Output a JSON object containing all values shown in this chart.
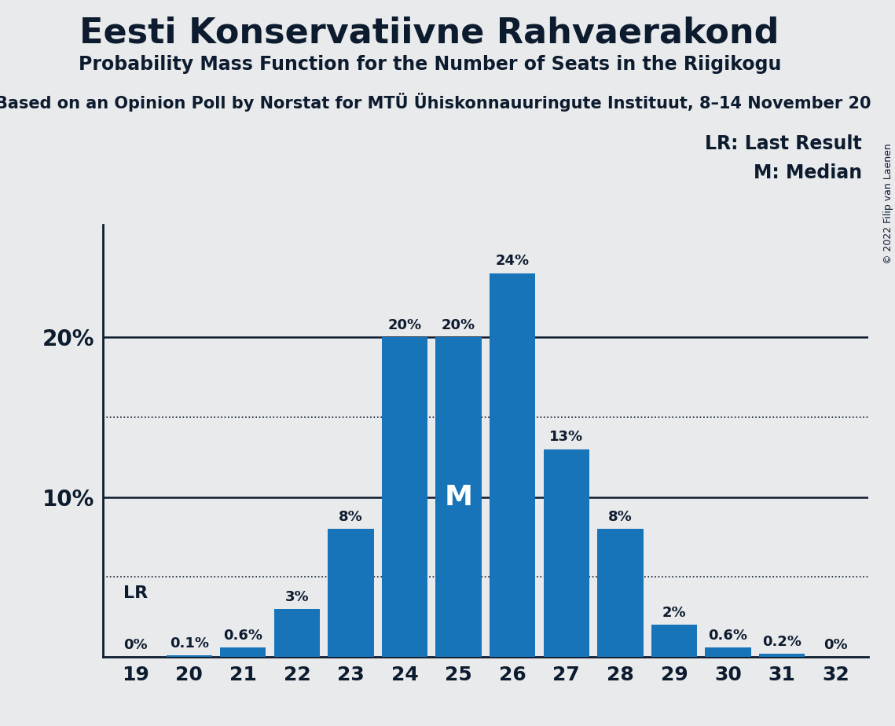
{
  "title": "Eesti Konservatiivne Rahvaerakond",
  "subtitle": "Probability Mass Function for the Number of Seats in the Riigikogu",
  "source_line": "Based on an Opinion Poll by Norstat for MTÜ Ühiskonnauuringute Instituut, 8–14 November 20",
  "copyright": "© 2022 Filip van Laenen",
  "seats": [
    19,
    20,
    21,
    22,
    23,
    24,
    25,
    26,
    27,
    28,
    29,
    30,
    31,
    32
  ],
  "probabilities": [
    0.0,
    0.1,
    0.6,
    3.0,
    8.0,
    20.0,
    20.0,
    24.0,
    13.0,
    8.0,
    2.0,
    0.6,
    0.2,
    0.0
  ],
  "bar_color": "#1874b8",
  "background_color": "#e8eaec",
  "text_color": "#0d1b2e",
  "dotted_lines": [
    5.0,
    15.0
  ],
  "solid_lines": [
    10.0,
    20.0
  ],
  "lr_seat": 19,
  "median_seat": 25,
  "ylim": [
    0,
    27
  ],
  "legend_lr": "LR: Last Result",
  "legend_m": "M: Median"
}
